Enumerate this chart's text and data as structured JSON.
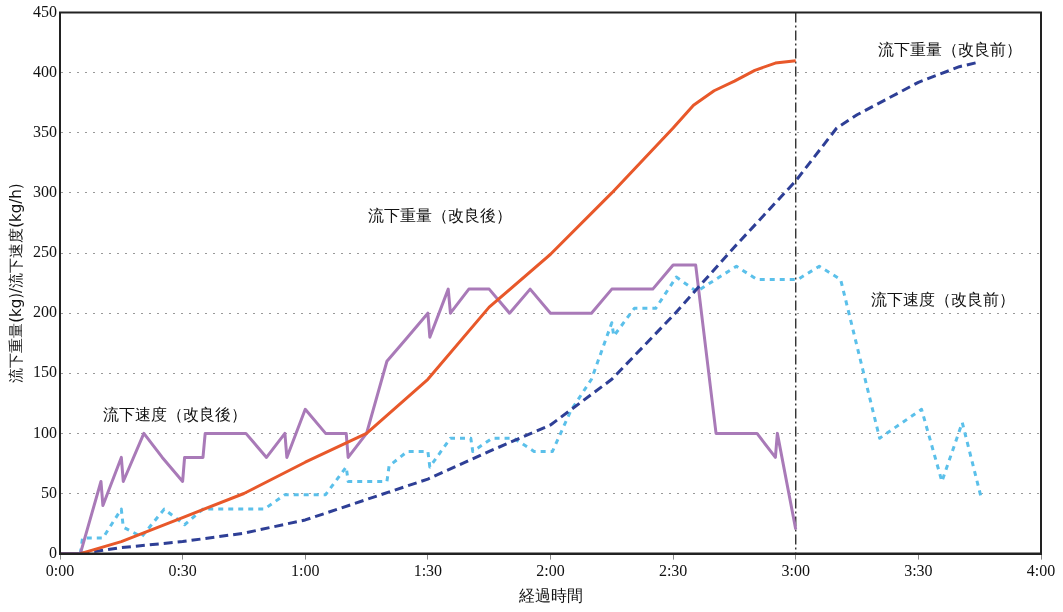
{
  "chart_data": {
    "type": "line",
    "xlabel": "経過時間",
    "ylabel": "流下重量(kg)/流下速度(kg/h)",
    "xlim": [
      0,
      4
    ],
    "xticks": [
      {
        "value": 0,
        "label": "0:00"
      },
      {
        "value": 0.5,
        "label": "0:30"
      },
      {
        "value": 1,
        "label": "1:00"
      },
      {
        "value": 1.5,
        "label": "1:30"
      },
      {
        "value": 2,
        "label": "2:00"
      },
      {
        "value": 2.5,
        "label": "2:30"
      },
      {
        "value": 3,
        "label": "3:00"
      },
      {
        "value": 3.5,
        "label": "3:30"
      },
      {
        "value": 4,
        "label": "4:00"
      }
    ],
    "ylim": [
      0,
      450
    ],
    "yticks": [
      0,
      50,
      100,
      150,
      200,
      250,
      300,
      350,
      400,
      450
    ],
    "grid": "y",
    "legend": false,
    "marker": "none",
    "ref_lines": [
      {
        "axis": "x",
        "value": 3,
        "color": "#222222",
        "line_style": "dashed"
      }
    ],
    "series": [
      {
        "name": "流下重量（改良後）",
        "color": "#e8582a",
        "line_style": "solid",
        "x": [
          0.083,
          0.25,
          0.5,
          0.75,
          1,
          1.25,
          1.5,
          1.75,
          2,
          2.25,
          2.5,
          2.583,
          2.667,
          2.75,
          2.833,
          2.917,
          3
        ],
        "values": [
          0,
          10,
          30,
          50,
          76,
          100,
          145,
          205,
          249,
          300,
          354,
          373,
          385,
          393,
          402,
          408,
          410
        ]
      },
      {
        "name": "流下重量（改良前）",
        "color": "#2e3f96",
        "line_style": "dashed",
        "x": [
          0.083,
          0.25,
          0.5,
          0.75,
          1,
          1.25,
          1.5,
          1.75,
          2,
          2.25,
          2.5,
          2.75,
          3,
          3.167,
          3.25,
          3.5,
          3.667,
          3.75
        ],
        "values": [
          0,
          5,
          10,
          17,
          28,
          45,
          62,
          85,
          107,
          145,
          198,
          255,
          310,
          354,
          365,
          392,
          405,
          409
        ]
      },
      {
        "name": "流下速度（改良後）",
        "color": "#a97ab8",
        "line_style": "solid",
        "x": [
          0,
          0.083,
          0.167,
          0.175,
          0.25,
          0.258,
          0.342,
          0.417,
          0.5,
          0.508,
          0.583,
          0.592,
          0.758,
          0.842,
          0.917,
          0.925,
          1,
          1.083,
          1.167,
          1.175,
          1.25,
          1.333,
          1.417,
          1.5,
          1.508,
          1.583,
          1.592,
          1.667,
          1.75,
          1.833,
          1.917,
          2,
          2.167,
          2.25,
          2.417,
          2.5,
          2.592,
          2.675,
          2.842,
          2.917,
          2.925,
          3
        ],
        "values": [
          0,
          0,
          60,
          40,
          80,
          60,
          100,
          80,
          60,
          80,
          80,
          100,
          100,
          80,
          100,
          80,
          120,
          100,
          100,
          80,
          100,
          160,
          180,
          200,
          180,
          220,
          200,
          220,
          220,
          200,
          220,
          200,
          200,
          220,
          220,
          240,
          240,
          100,
          100,
          80,
          100,
          20
        ]
      },
      {
        "name": "流下速度（改良前）",
        "color": "#5bc0ea",
        "line_style": "dotted",
        "x": [
          0.083,
          0.092,
          0.175,
          0.25,
          0.258,
          0.333,
          0.425,
          0.508,
          0.583,
          0.833,
          0.917,
          1.083,
          1.167,
          1.175,
          1.333,
          1.342,
          1.417,
          1.5,
          1.508,
          1.592,
          1.675,
          1.683,
          1.763,
          1.85,
          1.933,
          2.008,
          2.083,
          2.167,
          2.25,
          2.258,
          2.342,
          2.429,
          2.513,
          2.596,
          2.758,
          2.842,
          3.008,
          3.096,
          3.183,
          3.342,
          3.513,
          3.596,
          3.679,
          3.758
        ],
        "values": [
          0,
          13,
          13,
          37,
          22,
          14,
          37,
          24,
          37,
          37,
          49,
          49,
          72,
          60,
          60,
          73,
          85,
          85,
          72,
          96,
          96,
          85,
          96,
          96,
          85,
          85,
          119,
          145,
          192,
          181,
          204,
          204,
          230,
          218,
          239,
          228,
          228,
          239,
          228,
          96,
          120,
          60,
          109,
          45
        ]
      }
    ]
  }
}
